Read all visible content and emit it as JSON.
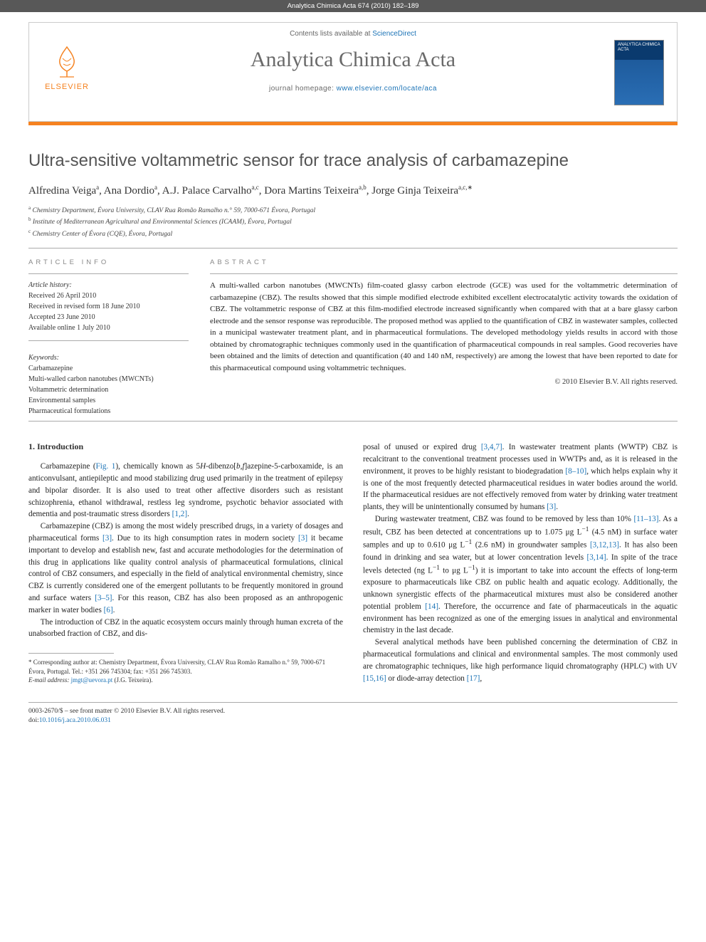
{
  "topbar": "Analytica Chimica Acta 674 (2010) 182–189",
  "header": {
    "contents_prefix": "Contents lists available at ",
    "contents_link": "ScienceDirect",
    "journal_title": "Analytica Chimica Acta",
    "homepage_prefix": "journal homepage: ",
    "homepage_link": "www.elsevier.com/locate/aca",
    "publisher_name": "ELSEVIER",
    "cover_label": "ANALYTICA CHIMICA ACTA"
  },
  "article": {
    "title": "Ultra-sensitive voltammetric sensor for trace analysis of carbamazepine",
    "authors_html": "Alfredina Veiga<sup>a</sup>, Ana Dordio<sup>a</sup>, A.J. Palace Carvalho<sup>a,c</sup>, Dora Martins Teixeira<sup>a,b</sup>, Jorge Ginja Teixeira<sup>a,c,*</sup>",
    "authors": [
      {
        "name": "Alfredina Veiga",
        "sup": "a"
      },
      {
        "name": "Ana Dordio",
        "sup": "a"
      },
      {
        "name": "A.J. Palace Carvalho",
        "sup": "a,c"
      },
      {
        "name": "Dora Martins Teixeira",
        "sup": "a,b"
      },
      {
        "name": "Jorge Ginja Teixeira",
        "sup": "a,c,*"
      }
    ],
    "affiliations": [
      {
        "sup": "a",
        "text": "Chemistry Department, Évora University, CLAV Rua Romão Ramalho n.° 59, 7000-671 Évora, Portugal"
      },
      {
        "sup": "b",
        "text": "Institute of Mediterranean Agricultural and Environmental Sciences (ICAAM), Évora, Portugal"
      },
      {
        "sup": "c",
        "text": "Chemistry Center of Évora (CQE), Évora, Portugal"
      }
    ]
  },
  "info": {
    "heading": "ARTICLE INFO",
    "history_label": "Article history:",
    "history": [
      "Received 26 April 2010",
      "Received in revised form 18 June 2010",
      "Accepted 23 June 2010",
      "Available online 1 July 2010"
    ],
    "keywords_label": "Keywords:",
    "keywords": [
      "Carbamazepine",
      "Multi-walled carbon nanotubes (MWCNTs)",
      "Voltammetric determination",
      "Environmental samples",
      "Pharmaceutical formulations"
    ]
  },
  "abstract": {
    "heading": "ABSTRACT",
    "text": "A multi-walled carbon nanotubes (MWCNTs) film-coated glassy carbon electrode (GCE) was used for the voltammetric determination of carbamazepine (CBZ). The results showed that this simple modified electrode exhibited excellent electrocatalytic activity towards the oxidation of CBZ. The voltammetric response of CBZ at this film-modified electrode increased significantly when compared with that at a bare glassy carbon electrode and the sensor response was reproducible. The proposed method was applied to the quantification of CBZ in wastewater samples, collected in a municipal wastewater treatment plant, and in pharmaceutical formulations. The developed methodology yields results in accord with those obtained by chromatographic techniques commonly used in the quantification of pharmaceutical compounds in real samples. Good recoveries have been obtained and the limits of detection and quantification (40 and 140 nM, respectively) are among the lowest that have been reported to date for this pharmaceutical compound using voltammetric techniques.",
    "copyright": "© 2010 Elsevier B.V. All rights reserved."
  },
  "body": {
    "section_heading": "1. Introduction",
    "left_paragraphs": [
      "Carbamazepine (<a class=\"fig-link\">Fig. 1</a>), chemically known as 5<i>H</i>-dibenzo[<i>b</i>,<i>f</i>]azepine-5-carboxamide, is an anticonvulsant, antiepileptic and mood stabilizing drug used primarily in the treatment of epilepsy and bipolar disorder. It is also used to treat other affective disorders such as resistant schizophrenia, ethanol withdrawal, restless leg syndrome, psychotic behavior associated with dementia and post-traumatic stress disorders <a>[1,2]</a>.",
      "Carbamazepine (CBZ) is among the most widely prescribed drugs, in a variety of dosages and pharmaceutical forms <a>[3]</a>. Due to its high consumption rates in modern society <a>[3]</a> it became important to develop and establish new, fast and accurate methodologies for the determination of this drug in applications like quality control analysis of pharmaceutical formulations, clinical control of CBZ consumers, and especially in the field of analytical environmental chemistry, since CBZ is currently considered one of the emergent pollutants to be frequently monitored in ground and surface waters <a>[3–5]</a>. For this reason, CBZ has also been proposed as an anthropogenic marker in water bodies <a>[6]</a>.",
      "The introduction of CBZ in the aquatic ecosystem occurs mainly through human excreta of the unabsorbed fraction of CBZ, and dis-"
    ],
    "right_paragraphs": [
      "posal of unused or expired drug <a>[3,4,7]</a>. In wastewater treatment plants (WWTP) CBZ is recalcitrant to the conventional treatment processes used in WWTPs and, as it is released in the environment, it proves to be highly resistant to biodegradation <a>[8–10]</a>, which helps explain why it is one of the most frequently detected pharmaceutical residues in water bodies around the world. If the pharmaceutical residues are not effectively removed from water by drinking water treatment plants, they will be unintentionally consumed by humans <a>[3]</a>.",
      "During wastewater treatment, CBZ was found to be removed by less than 10% <a>[11–13]</a>. As a result, CBZ has been detected at concentrations up to 1.075 μg L<sup>−1</sup> (4.5 nM) in surface water samples and up to 0.610 μg L<sup>−1</sup> (2.6 nM) in groundwater samples <a>[3,12,13]</a>. It has also been found in drinking and sea water, but at lower concentration levels <a>[3,14]</a>. In spite of the trace levels detected (ng L<sup>−1</sup> to μg L<sup>−1</sup>) it is important to take into account the effects of long-term exposure to pharmaceuticals like CBZ on public health and aquatic ecology. Additionally, the unknown synergistic effects of the pharmaceutical mixtures must also be considered another potential problem <a>[14]</a>. Therefore, the occurrence and fate of pharmaceuticals in the aquatic environment has been recognized as one of the emerging issues in analytical and environmental chemistry in the last decade.",
      "Several analytical methods have been published concerning the determination of CBZ in pharmaceutical formulations and clinical and environmental samples. The most commonly used are chromatographic techniques, like high performance liquid chromatography (HPLC) with UV <a>[15,16]</a> or diode-array detection <a>[17]</a>,"
    ]
  },
  "footnotes": {
    "corresponding": "* Corresponding author at: Chemistry Department, Évora University, CLAV Rua Romão Ramalho n.° 59, 7000-671 Évora, Portugal. Tel.: +351 266 745304; fax: +351 266 745303.",
    "email_label": "E-mail address:",
    "email": "jmgt@uevora.pt",
    "email_suffix": " (J.G. Teixeira)."
  },
  "bottom": {
    "issn_line": "0003-2670/$ – see front matter © 2010 Elsevier B.V. All rights reserved.",
    "doi_prefix": "doi:",
    "doi": "10.1016/j.aca.2010.06.031"
  },
  "colors": {
    "accent_orange": "#f58220",
    "link_blue": "#1b73b6",
    "topbar_gray": "#585858",
    "text_gray": "#555"
  }
}
